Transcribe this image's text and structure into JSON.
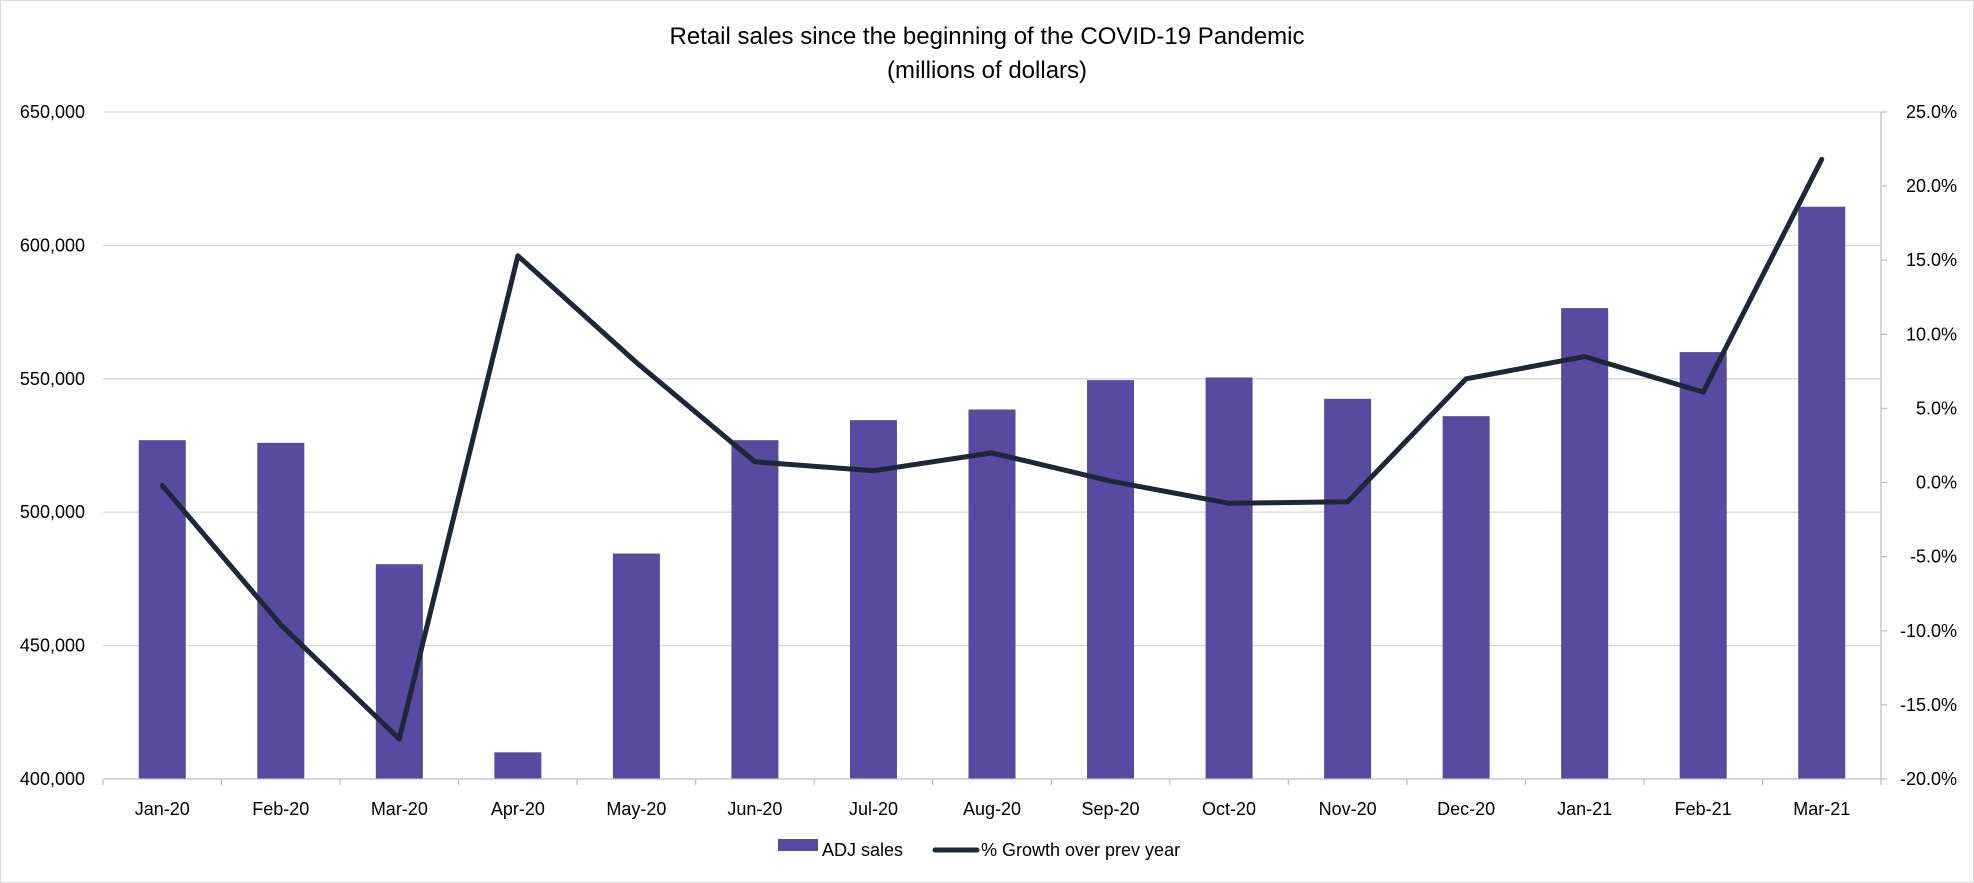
{
  "chart_data": {
    "type": "bar",
    "title": "Retail sales since the beginning of the COVID-19 Pandemic",
    "subtitle": "(millions of dollars)",
    "categories": [
      "Jan-20",
      "Feb-20",
      "Mar-20",
      "Apr-20",
      "May-20",
      "Jun-20",
      "Jul-20",
      "Aug-20",
      "Sep-20",
      "Oct-20",
      "Nov-20",
      "Dec-20",
      "Jan-21",
      "Feb-21",
      "Mar-21"
    ],
    "series": [
      {
        "name": "ADJ sales",
        "type": "bar",
        "axis": "left",
        "color": "#574aa0",
        "values": [
          527000,
          526000,
          480500,
          410000,
          484500,
          527000,
          534500,
          538500,
          549500,
          550500,
          542500,
          536000,
          576500,
          560000,
          614500
        ]
      },
      {
        "name": "% Growth over prev year",
        "type": "line",
        "axis": "right",
        "color": "#1f2637",
        "values": [
          -0.2,
          -9.6,
          -17.3,
          15.3,
          8.1,
          1.4,
          0.8,
          2.0,
          0.1,
          -1.4,
          -1.3,
          7.0,
          8.5,
          6.1,
          21.8
        ]
      }
    ],
    "y_left": {
      "min": 400000,
      "max": 650000,
      "ticks": [
        400000,
        450000,
        500000,
        550000,
        600000,
        650000
      ],
      "tick_labels": [
        "400,000",
        "450,000",
        "500,000",
        "550,000",
        "600,000",
        "650,000"
      ]
    },
    "y_right": {
      "min": -20,
      "max": 25,
      "ticks": [
        -20,
        -15,
        -10,
        -5,
        0,
        5,
        10,
        15,
        20,
        25
      ],
      "tick_labels": [
        "-20.0%",
        "-15.0%",
        "-10.0%",
        "-5.0%",
        "0.0%",
        "5.0%",
        "10.0%",
        "15.0%",
        "20.0%",
        "25.0%"
      ]
    },
    "grid": true,
    "gridline_color": "#d9d9d9",
    "legend_position": "bottom"
  }
}
